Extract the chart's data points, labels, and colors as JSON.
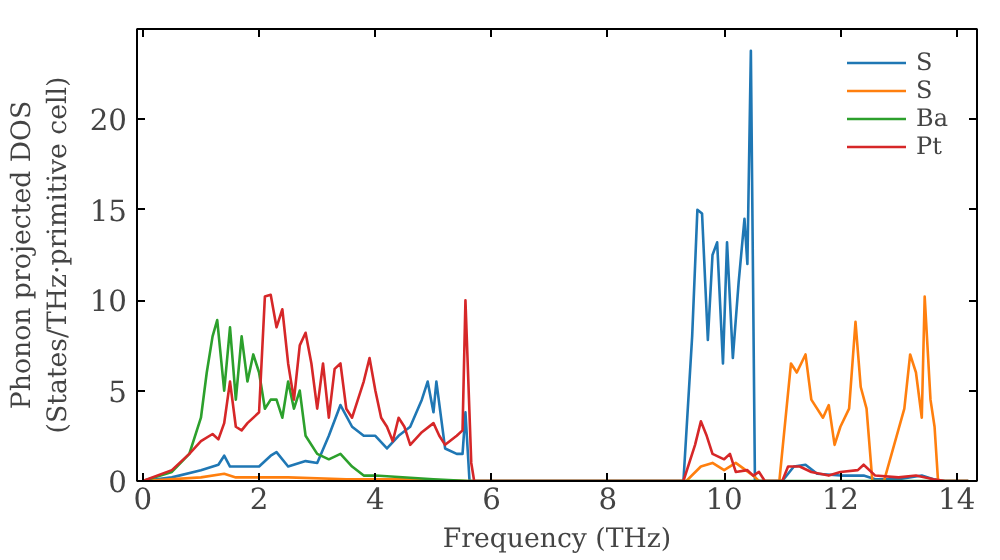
{
  "chart_data": {
    "type": "line",
    "xlabel": "Frequency (THz)",
    "ylabel": "Phonon projected DOS\n(States/THz·primitive cell)",
    "xlim": [
      -0.1,
      14.35
    ],
    "ylim": [
      0,
      25
    ],
    "xticks": [
      0,
      2,
      4,
      6,
      8,
      10,
      12,
      14
    ],
    "yticks": [
      0,
      5,
      10,
      15,
      20
    ],
    "grid": false,
    "legend": "top right",
    "marker": "none",
    "line_style": "solid",
    "series": [
      {
        "name": "S",
        "color": "#1f77b4",
        "x": [
          0,
          0.5,
          1.0,
          1.3,
          1.4,
          1.5,
          2.0,
          2.2,
          2.3,
          2.5,
          2.8,
          3.0,
          3.2,
          3.4,
          3.6,
          3.8,
          4.0,
          4.2,
          4.4,
          4.6,
          4.8,
          4.9,
          5.0,
          5.05,
          5.2,
          5.4,
          5.5,
          5.55,
          5.62,
          5.8,
          9.3,
          9.45,
          9.54,
          9.62,
          9.72,
          9.8,
          9.88,
          9.98,
          10.05,
          10.15,
          10.25,
          10.35,
          10.4,
          10.46,
          10.53,
          11.0,
          11.2,
          11.4,
          11.6,
          12.0,
          12.4,
          12.6,
          13.0,
          13.4,
          13.6,
          13.8,
          14.2
        ],
        "values": [
          0,
          0.2,
          0.6,
          0.9,
          1.4,
          0.8,
          0.8,
          1.4,
          1.6,
          0.8,
          1.1,
          1.0,
          2.5,
          4.2,
          3.0,
          2.5,
          2.5,
          1.8,
          2.5,
          3.0,
          4.5,
          5.5,
          3.8,
          5.5,
          1.8,
          1.5,
          1.5,
          3.8,
          0,
          0,
          0,
          8,
          15,
          14.8,
          7.8,
          12.5,
          13.2,
          6.5,
          13.2,
          6.8,
          11,
          14.5,
          12,
          23.8,
          0,
          0,
          0.8,
          0.9,
          0.4,
          0.3,
          0.3,
          0.1,
          0.1,
          0.3,
          0.1,
          0,
          0
        ]
      },
      {
        "name": "S",
        "color": "#ff7f0e",
        "x": [
          0,
          1.0,
          1.4,
          1.6,
          2.5,
          3.5,
          4.5,
          5.6,
          9.35,
          9.6,
          9.8,
          10.0,
          10.2,
          10.5,
          10.6,
          10.95,
          11.15,
          11.25,
          11.4,
          11.5,
          11.7,
          11.8,
          11.9,
          12.0,
          12.15,
          12.26,
          12.35,
          12.45,
          12.55,
          12.75,
          13.1,
          13.2,
          13.3,
          13.4,
          13.45,
          13.55,
          13.62,
          13.68,
          14.2
        ],
        "values": [
          0,
          0.2,
          0.4,
          0.2,
          0.2,
          0.1,
          0.1,
          0,
          0,
          0.8,
          1.0,
          0.6,
          1.0,
          0.3,
          0,
          0,
          6.5,
          6.0,
          7.0,
          4.5,
          3.5,
          4.2,
          2.0,
          3.0,
          4.0,
          8.8,
          5.2,
          4.0,
          0,
          0,
          4.0,
          7.0,
          6.0,
          3.5,
          10.2,
          4.5,
          3.0,
          0,
          0
        ]
      },
      {
        "name": "Ba",
        "color": "#2ca02c",
        "x": [
          0,
          0.5,
          0.8,
          1.0,
          1.1,
          1.2,
          1.28,
          1.4,
          1.5,
          1.6,
          1.7,
          1.8,
          1.9,
          2.0,
          2.1,
          2.2,
          2.3,
          2.4,
          2.5,
          2.6,
          2.7,
          2.8,
          3.0,
          3.2,
          3.4,
          3.6,
          3.8,
          4.0,
          5.0,
          5.6,
          14.2
        ],
        "values": [
          0,
          0.5,
          1.5,
          3.5,
          6.0,
          8.0,
          8.9,
          5.0,
          8.5,
          4.5,
          8.0,
          5.5,
          7.0,
          6.0,
          4.0,
          4.5,
          4.5,
          3.5,
          5.5,
          4.0,
          5.0,
          2.5,
          1.5,
          1.2,
          1.5,
          0.8,
          0.3,
          0.3,
          0.1,
          0,
          0
        ]
      },
      {
        "name": "Pt",
        "color": "#d62728",
        "x": [
          0,
          0.5,
          0.8,
          1.0,
          1.2,
          1.3,
          1.4,
          1.5,
          1.6,
          1.7,
          1.8,
          2.0,
          2.1,
          2.2,
          2.3,
          2.4,
          2.5,
          2.6,
          2.7,
          2.8,
          2.9,
          3.0,
          3.1,
          3.2,
          3.3,
          3.4,
          3.5,
          3.6,
          3.8,
          3.9,
          4.0,
          4.1,
          4.2,
          4.3,
          4.4,
          4.5,
          4.6,
          4.8,
          5.0,
          5.1,
          5.2,
          5.4,
          5.5,
          5.55,
          5.65,
          5.7,
          9.3,
          9.5,
          9.6,
          9.7,
          9.8,
          10.0,
          10.1,
          10.2,
          10.4,
          10.5,
          10.6,
          10.7,
          11.0,
          11.1,
          11.3,
          11.5,
          11.8,
          12.0,
          12.3,
          12.4,
          12.6,
          13.0,
          13.3,
          13.6,
          13.8,
          14.2
        ],
        "values": [
          0,
          0.6,
          1.5,
          2.2,
          2.6,
          2.3,
          3.2,
          5.5,
          3.0,
          2.8,
          3.2,
          3.8,
          10.2,
          10.3,
          8.5,
          9.5,
          6.5,
          4.5,
          7.5,
          8.2,
          6.5,
          4.0,
          6.5,
          3.5,
          6.2,
          6.5,
          4.0,
          3.5,
          5.5,
          6.8,
          5.0,
          3.5,
          3.0,
          2.2,
          3.5,
          3.0,
          2.0,
          2.7,
          3.2,
          2.5,
          2.0,
          2.5,
          2.8,
          10.0,
          1.0,
          0,
          0,
          2.0,
          3.3,
          2.5,
          1.5,
          1.2,
          1.5,
          0.5,
          0.6,
          0.3,
          0.5,
          0,
          0,
          0.8,
          0.8,
          0.5,
          0.3,
          0.5,
          0.6,
          0.9,
          0.3,
          0.2,
          0.3,
          0.1,
          0,
          0
        ]
      }
    ]
  }
}
